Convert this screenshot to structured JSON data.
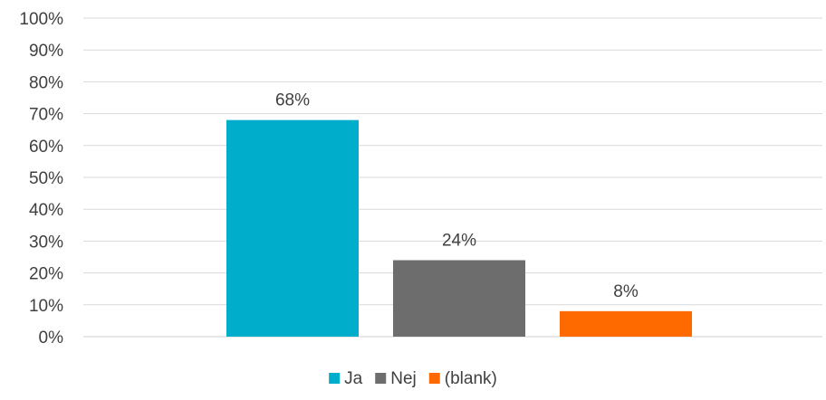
{
  "chart_data": {
    "type": "bar",
    "title": "",
    "xlabel": "",
    "ylabel": "",
    "ylim": [
      0,
      100
    ],
    "y_tick_step": 10,
    "y_tick_format": "percent",
    "grid": true,
    "legend_position": "bottom",
    "series": [
      {
        "name": "Ja",
        "value": 68,
        "label": "68%",
        "color": "#00AECB"
      },
      {
        "name": "Nej",
        "value": 24,
        "label": "24%",
        "color": "#6D6D6D"
      },
      {
        "name": "(blank)",
        "value": 8,
        "label": "8%",
        "color": "#FF6A00"
      }
    ]
  }
}
